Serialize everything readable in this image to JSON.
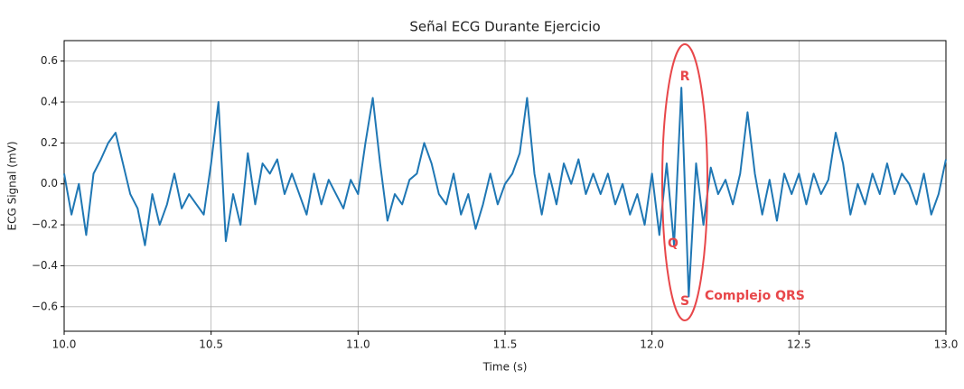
{
  "chart_data": {
    "type": "line",
    "title": "Señal ECG Durante Ejercicio",
    "x_label": "Time (s)",
    "y_label": "ECG Signal (mV)",
    "x": [
      10.0,
      10.025,
      10.05,
      10.075,
      10.1,
      10.125,
      10.15,
      10.175,
      10.2,
      10.225,
      10.25,
      10.275,
      10.3,
      10.325,
      10.35,
      10.375,
      10.4,
      10.425,
      10.45,
      10.475,
      10.5,
      10.525,
      10.55,
      10.575,
      10.6,
      10.625,
      10.65,
      10.675,
      10.7,
      10.725,
      10.75,
      10.775,
      10.8,
      10.825,
      10.85,
      10.875,
      10.9,
      10.925,
      10.95,
      10.975,
      11.0,
      11.025,
      11.05,
      11.075,
      11.1,
      11.125,
      11.15,
      11.175,
      11.2,
      11.225,
      11.25,
      11.275,
      11.3,
      11.325,
      11.35,
      11.375,
      11.4,
      11.425,
      11.45,
      11.475,
      11.5,
      11.525,
      11.55,
      11.575,
      11.6,
      11.625,
      11.65,
      11.675,
      11.7,
      11.725,
      11.75,
      11.775,
      11.8,
      11.825,
      11.85,
      11.875,
      11.9,
      11.925,
      11.95,
      11.975,
      12.0,
      12.025,
      12.05,
      12.075,
      12.1,
      12.125,
      12.15,
      12.175,
      12.2,
      12.225,
      12.25,
      12.275,
      12.3,
      12.325,
      12.35,
      12.375,
      12.4,
      12.425,
      12.45,
      12.475,
      12.5,
      12.525,
      12.55,
      12.575,
      12.6,
      12.625,
      12.65,
      12.675,
      12.7,
      12.725,
      12.75,
      12.775,
      12.8,
      12.825,
      12.85,
      12.875,
      12.9,
      12.925,
      12.95,
      12.975,
      13.0
    ],
    "series": [
      {
        "color": "#1f77b4",
        "values": [
          0.05,
          -0.15,
          0.0,
          -0.25,
          0.05,
          0.12,
          0.2,
          0.25,
          0.1,
          -0.05,
          -0.12,
          -0.3,
          -0.05,
          -0.2,
          -0.1,
          0.05,
          -0.12,
          -0.05,
          -0.1,
          -0.15,
          0.1,
          0.4,
          -0.28,
          -0.05,
          -0.2,
          0.15,
          -0.1,
          0.1,
          0.05,
          0.12,
          -0.05,
          0.05,
          -0.05,
          -0.15,
          0.05,
          -0.1,
          0.02,
          -0.05,
          -0.12,
          0.02,
          -0.05,
          0.2,
          0.42,
          0.1,
          -0.18,
          -0.05,
          -0.1,
          0.02,
          0.05,
          0.2,
          0.1,
          -0.05,
          -0.1,
          0.05,
          -0.15,
          -0.05,
          -0.22,
          -0.1,
          0.05,
          -0.1,
          0.0,
          0.05,
          0.15,
          0.42,
          0.05,
          -0.15,
          0.05,
          -0.1,
          0.1,
          0.0,
          0.12,
          -0.05,
          0.05,
          -0.05,
          0.05,
          -0.1,
          0.0,
          -0.15,
          -0.05,
          -0.2,
          0.05,
          -0.25,
          0.1,
          -0.3,
          0.47,
          -0.55,
          0.1,
          -0.2,
          0.08,
          -0.05,
          0.02,
          -0.1,
          0.05,
          0.35,
          0.05,
          -0.15,
          0.02,
          -0.18,
          0.05,
          -0.05,
          0.05,
          -0.1,
          0.05,
          -0.05,
          0.02,
          0.25,
          0.1,
          -0.15,
          0.0,
          -0.1,
          0.05,
          -0.05,
          0.1,
          -0.05,
          0.05,
          0.0,
          -0.1,
          0.05,
          -0.15,
          -0.05,
          0.12
        ]
      }
    ],
    "xlim": [
      10.0,
      13.0
    ],
    "xticks": [
      {
        "value": 10.0,
        "label": "10.0"
      },
      10.5,
      {
        "value": 11.0,
        "label": "11.0"
      },
      11.5,
      {
        "value": 12.0,
        "label": "12.0"
      },
      12.5,
      {
        "value": 13.0,
        "label": "13.0"
      }
    ],
    "ylim": [
      -0.72,
      0.7
    ],
    "yticks": [
      {
        "value": -0.6,
        "label": "−0.6"
      },
      {
        "value": -0.4,
        "label": "−0.4"
      },
      {
        "value": -0.2,
        "label": "−0.2"
      },
      {
        "value": 0,
        "label": "0.0"
      },
      0.2,
      0.4,
      0.6
    ],
    "grid": true,
    "annotations": [
      "R",
      "Q",
      "S",
      "Complejo QRS"
    ]
  }
}
